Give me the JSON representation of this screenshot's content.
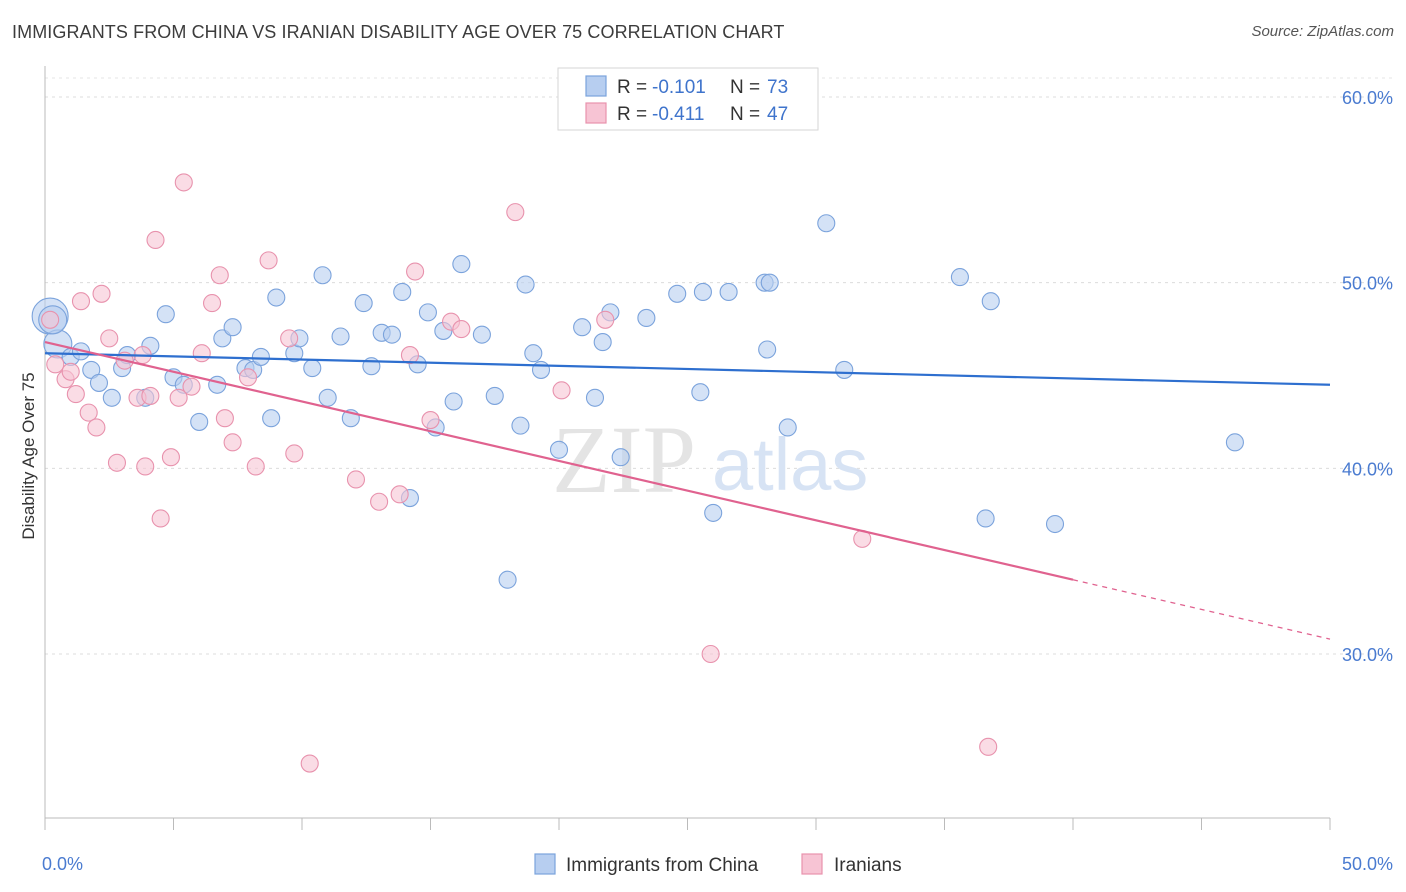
{
  "title": "IMMIGRANTS FROM CHINA VS IRANIAN DISABILITY AGE OVER 75 CORRELATION CHART",
  "source": "Source: ZipAtlas.com",
  "legend": {
    "r_label": "R =",
    "n_label": "N =",
    "rows": [
      {
        "r": "-0.101",
        "n": "73"
      },
      {
        "r": "-0.411",
        "n": "47"
      }
    ]
  },
  "watermark": {
    "zip": "ZIP",
    "atlas": "atlas"
  },
  "colors": {
    "china_fill": "#b7cef0",
    "china_stroke": "#7ba3dc",
    "china_line": "#2e6fcf",
    "iran_fill": "#f7c4d4",
    "iran_stroke": "#e892ad",
    "iran_line": "#e0628f"
  },
  "chart_data": {
    "type": "scatter",
    "title": "IMMIGRANTS FROM CHINA VS IRANIAN DISABILITY AGE OVER 75 CORRELATION CHART",
    "xlabel": "",
    "ylabel": "Disability Age Over 75",
    "xlim": [
      0,
      50
    ],
    "ylim": [
      20,
      63
    ],
    "x_tick_labels": [
      "0.0%",
      "50.0%"
    ],
    "y_ticks": [
      30,
      40,
      50,
      60
    ],
    "y_tick_labels": [
      "30.0%",
      "40.0%",
      "50.0%",
      "60.0%"
    ],
    "grid": true,
    "legend_position": "top-center",
    "series": [
      {
        "name": "Immigrants from China",
        "r": -0.101,
        "n": 73,
        "trend": {
          "x0": 0,
          "y0": 46.2,
          "x1": 50,
          "y1": 44.5
        },
        "points": [
          [
            0.2,
            48.2
          ],
          [
            0.5,
            46.7
          ],
          [
            1.0,
            46.0
          ],
          [
            1.4,
            46.3
          ],
          [
            1.8,
            45.3
          ],
          [
            2.1,
            44.6
          ],
          [
            2.6,
            43.8
          ],
          [
            3.0,
            45.4
          ],
          [
            3.2,
            46.1
          ],
          [
            3.9,
            43.8
          ],
          [
            4.1,
            46.6
          ],
          [
            4.7,
            48.3
          ],
          [
            5.0,
            44.9
          ],
          [
            5.4,
            44.5
          ],
          [
            6.0,
            42.5
          ],
          [
            6.7,
            44.5
          ],
          [
            6.9,
            47.0
          ],
          [
            7.3,
            47.6
          ],
          [
            7.8,
            45.4
          ],
          [
            8.1,
            45.3
          ],
          [
            8.4,
            46.0
          ],
          [
            8.8,
            42.7
          ],
          [
            9.0,
            49.2
          ],
          [
            9.7,
            46.2
          ],
          [
            9.9,
            47.0
          ],
          [
            10.4,
            45.4
          ],
          [
            10.8,
            50.4
          ],
          [
            11.0,
            43.8
          ],
          [
            11.5,
            47.1
          ],
          [
            11.9,
            42.7
          ],
          [
            12.4,
            48.9
          ],
          [
            12.7,
            45.5
          ],
          [
            13.1,
            47.3
          ],
          [
            13.5,
            47.2
          ],
          [
            13.9,
            49.5
          ],
          [
            14.2,
            38.4
          ],
          [
            14.5,
            45.6
          ],
          [
            14.9,
            48.4
          ],
          [
            15.2,
            42.2
          ],
          [
            15.5,
            47.4
          ],
          [
            15.9,
            43.6
          ],
          [
            16.2,
            51.0
          ],
          [
            17.0,
            47.2
          ],
          [
            17.5,
            43.9
          ],
          [
            18.0,
            34.0
          ],
          [
            18.5,
            42.3
          ],
          [
            18.7,
            49.9
          ],
          [
            19.0,
            46.2
          ],
          [
            19.3,
            45.3
          ],
          [
            20.0,
            41.0
          ],
          [
            20.9,
            47.6
          ],
          [
            21.4,
            43.8
          ],
          [
            21.7,
            46.8
          ],
          [
            22.0,
            48.4
          ],
          [
            22.4,
            40.6
          ],
          [
            23.4,
            48.1
          ],
          [
            24.6,
            49.4
          ],
          [
            25.5,
            44.1
          ],
          [
            25.6,
            49.5
          ],
          [
            26.0,
            37.6
          ],
          [
            26.6,
            49.5
          ],
          [
            28.0,
            50.0
          ],
          [
            28.2,
            50.0
          ],
          [
            28.1,
            46.4
          ],
          [
            28.9,
            42.2
          ],
          [
            30.4,
            53.2
          ],
          [
            31.1,
            45.3
          ],
          [
            35.6,
            50.3
          ],
          [
            36.6,
            37.3
          ],
          [
            36.8,
            49.0
          ],
          [
            39.3,
            37.0
          ],
          [
            46.3,
            41.4
          ],
          [
            0.3,
            48.0
          ]
        ],
        "sizes": {
          "0": 18,
          "1": 14,
          "72": 14
        }
      },
      {
        "name": "Iranians",
        "r": -0.411,
        "n": 47,
        "trend": {
          "x0": 0,
          "y0": 46.8,
          "x1": 40,
          "y1": 34.0,
          "dashed_to_x": 50,
          "dashed_to_y": 30.8
        },
        "points": [
          [
            0.2,
            48.0
          ],
          [
            0.4,
            45.6
          ],
          [
            0.8,
            44.8
          ],
          [
            1.0,
            45.2
          ],
          [
            1.2,
            44.0
          ],
          [
            1.4,
            49.0
          ],
          [
            1.7,
            43.0
          ],
          [
            2.0,
            42.2
          ],
          [
            2.2,
            49.4
          ],
          [
            2.5,
            47.0
          ],
          [
            2.8,
            40.3
          ],
          [
            3.1,
            45.8
          ],
          [
            3.6,
            43.8
          ],
          [
            3.9,
            40.1
          ],
          [
            4.1,
            43.9
          ],
          [
            4.3,
            52.3
          ],
          [
            4.5,
            37.3
          ],
          [
            4.9,
            40.6
          ],
          [
            5.2,
            43.8
          ],
          [
            5.4,
            55.4
          ],
          [
            5.7,
            44.4
          ],
          [
            6.1,
            46.2
          ],
          [
            6.5,
            48.9
          ],
          [
            6.8,
            50.4
          ],
          [
            7.0,
            42.7
          ],
          [
            7.3,
            41.4
          ],
          [
            7.9,
            44.9
          ],
          [
            8.2,
            40.1
          ],
          [
            8.7,
            51.2
          ],
          [
            9.5,
            47.0
          ],
          [
            9.7,
            40.8
          ],
          [
            10.3,
            24.1
          ],
          [
            12.1,
            39.4
          ],
          [
            13.0,
            38.2
          ],
          [
            13.8,
            38.6
          ],
          [
            14.2,
            46.1
          ],
          [
            14.4,
            50.6
          ],
          [
            15.0,
            42.6
          ],
          [
            15.8,
            47.9
          ],
          [
            16.2,
            47.5
          ],
          [
            18.3,
            53.8
          ],
          [
            20.1,
            44.2
          ],
          [
            21.8,
            48.0
          ],
          [
            25.9,
            30.0
          ],
          [
            31.8,
            36.2
          ],
          [
            36.7,
            25.0
          ],
          [
            3.8,
            46.1
          ]
        ]
      }
    ]
  },
  "bottom_legend": [
    {
      "label": "Immigrants from China"
    },
    {
      "label": "Iranians"
    }
  ]
}
